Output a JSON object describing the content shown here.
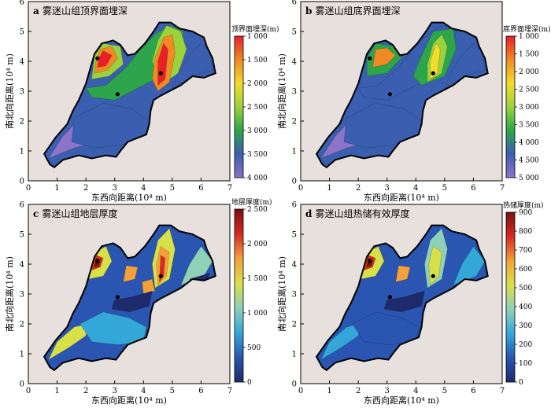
{
  "panels": [
    {
      "id": "a",
      "title": "雾迷山组顶界面埋深",
      "ylabel": "南北向距离(10⁴ m)",
      "xlabel": "东西向距离(10⁴ m)",
      "colorbar": {
        "title": "顶界面埋深(m)",
        "ticks": [
          "1 000",
          "1 500",
          "2 000",
          "2 500",
          "3 000",
          "3 500",
          "4 000"
        ],
        "reversed": true,
        "colors": [
          "#e8202a",
          "#f08a24",
          "#f2dc2c",
          "#9bd23c",
          "#2da54a",
          "#3a5fb0",
          "#8c74c8"
        ]
      }
    },
    {
      "id": "b",
      "title": "雾迷山组底界面埋深",
      "ylabel": "南北向距离(10⁴ m)",
      "xlabel": "东西向距离(10⁴ m)",
      "colorbar": {
        "title": "底界面埋深(m)",
        "ticks": [
          "1 000",
          "1 500",
          "2 000",
          "2 500",
          "3 000",
          "3 500",
          "4 000",
          "4 500",
          "5 000"
        ],
        "reversed": true,
        "colors": [
          "#e8202a",
          "#f08a24",
          "#f2dc2c",
          "#9bd23c",
          "#2da54a",
          "#3a5fb0",
          "#8c74c8"
        ]
      }
    },
    {
      "id": "c",
      "title": "雾迷山组地层厚度",
      "ylabel": "南北向距离(10⁴ m)",
      "xlabel": "东西向距离(10⁴ m)",
      "colorbar": {
        "title": "地层厚度(m)",
        "ticks": [
          "0",
          "500",
          "1 000",
          "1 500",
          "2 000",
          "2 500"
        ],
        "reversed": false,
        "colors": [
          "#1d2a6b",
          "#2a55b0",
          "#33a8d8",
          "#8fd0b8",
          "#d8e048",
          "#f4a13a",
          "#d62a22",
          "#7a1010"
        ]
      }
    },
    {
      "id": "d",
      "title": "雾迷山组热储有效厚度",
      "ylabel": "南北向距离(10⁴ m)",
      "xlabel": "东西向距离(10⁴ m)",
      "colorbar": {
        "title": "热储厚度(m)",
        "ticks": [
          "0",
          "100",
          "200",
          "300",
          "400",
          "500",
          "600",
          "700",
          "800",
          "900"
        ],
        "reversed": false,
        "colors": [
          "#1d2a6b",
          "#2a55b0",
          "#33a8d8",
          "#8fd0b8",
          "#d8e048",
          "#f4a13a",
          "#d62a22",
          "#7a1010"
        ]
      }
    }
  ],
  "axes": {
    "x_ticks": [
      "0",
      "1",
      "2",
      "3",
      "4",
      "5",
      "6",
      "7"
    ],
    "y_ticks": [
      "0",
      "1",
      "2",
      "3",
      "4",
      "5",
      "6"
    ]
  },
  "wells": [
    {
      "x": 2.4,
      "y": 4.1
    },
    {
      "x": 4.6,
      "y": 3.6
    },
    {
      "x": 3.1,
      "y": 2.9
    }
  ],
  "colors": {
    "panel_bg": "#e8e0dd",
    "boundary": "#000000"
  }
}
